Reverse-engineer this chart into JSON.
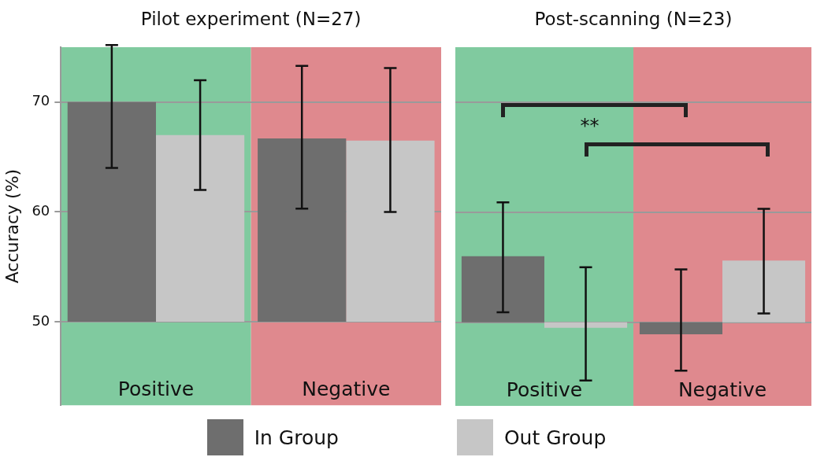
{
  "chart_data": [
    {
      "type": "bar",
      "title": "Pilot experiment (N=27)",
      "ylabel": "Accuracy (%)",
      "categories": [
        "Positive",
        "Negative"
      ],
      "series": [
        {
          "name": "In Group",
          "color": "#6e6e6e",
          "values": [
            20,
            16.7
          ],
          "base": [
            50,
            50
          ],
          "errors": [
            [
              64,
              75.2
            ],
            [
              60.3,
              73.3
            ]
          ]
        },
        {
          "name": "Out Group",
          "color": "#c6c6c6",
          "values": [
            17,
            16.5
          ],
          "base": [
            50,
            50
          ],
          "errors": [
            [
              62,
              72
            ],
            [
              60,
              73.1
            ]
          ]
        }
      ],
      "bands": [
        {
          "axis": "x",
          "from": "Positive",
          "to": "Positive",
          "color": "#80ca9f"
        },
        {
          "axis": "x",
          "from": "Negative",
          "to": "Negative",
          "color": "#df898e"
        }
      ],
      "ylim": [
        42.4,
        75
      ],
      "yticks": [
        50,
        60,
        70
      ],
      "grid": "y",
      "legend": "bottom"
    },
    {
      "type": "bar",
      "title": "Post-scanning (N=23)",
      "categories": [
        "Positive",
        "Negative"
      ],
      "series": [
        {
          "color": "#6e6e6e",
          "values": [
            6,
            -1.1
          ],
          "base": [
            50,
            50
          ],
          "errors": [
            [
              50.9,
              60.9
            ],
            [
              45.6,
              54.8
            ]
          ]
        },
        {
          "color": "#c6c6c6",
          "values": [
            -0.5,
            5.6
          ],
          "base": [
            50,
            50
          ],
          "errors": [
            [
              44.7,
              55
            ],
            [
              50.8,
              60.3
            ]
          ]
        }
      ],
      "bands": [
        {
          "axis": "x",
          "from": "Positive",
          "to": "Positive",
          "color": "#80ca9f"
        },
        {
          "axis": "x",
          "from": "Negative",
          "to": "Negative",
          "color": "#df898e"
        }
      ],
      "annotations": [
        "**"
      ],
      "ylim": [
        42.4,
        75
      ],
      "yticks": [
        50,
        60,
        70
      ],
      "grid": "y",
      "tick_labels": "x"
    }
  ]
}
